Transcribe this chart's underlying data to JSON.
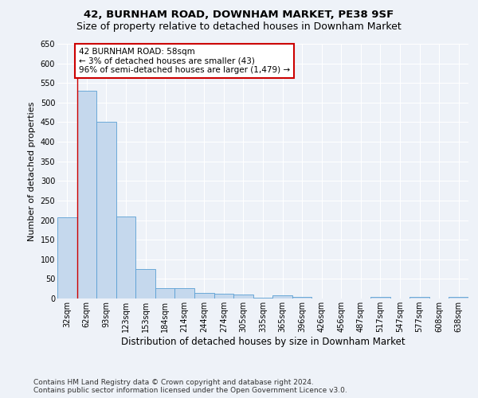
{
  "title": "42, BURNHAM ROAD, DOWNHAM MARKET, PE38 9SF",
  "subtitle": "Size of property relative to detached houses in Downham Market",
  "xlabel": "Distribution of detached houses by size in Downham Market",
  "ylabel": "Number of detached properties",
  "categories": [
    "32sqm",
    "62sqm",
    "93sqm",
    "123sqm",
    "153sqm",
    "184sqm",
    "214sqm",
    "244sqm",
    "274sqm",
    "305sqm",
    "335sqm",
    "365sqm",
    "396sqm",
    "426sqm",
    "456sqm",
    "487sqm",
    "517sqm",
    "547sqm",
    "577sqm",
    "608sqm",
    "638sqm"
  ],
  "values": [
    207,
    530,
    450,
    210,
    75,
    27,
    27,
    15,
    13,
    10,
    3,
    8,
    5,
    0,
    0,
    0,
    5,
    0,
    5,
    0,
    5
  ],
  "bar_color": "#c5d8ed",
  "bar_edge_color": "#5a9fd4",
  "annotation_text": "42 BURNHAM ROAD: 58sqm\n← 3% of detached houses are smaller (43)\n96% of semi-detached houses are larger (1,479) →",
  "annotation_box_color": "#ffffff",
  "annotation_box_edge_color": "#cc0000",
  "red_line_x": 0.5,
  "ylim": [
    0,
    650
  ],
  "yticks": [
    0,
    50,
    100,
    150,
    200,
    250,
    300,
    350,
    400,
    450,
    500,
    550,
    600,
    650
  ],
  "footer_line1": "Contains HM Land Registry data © Crown copyright and database right 2024.",
  "footer_line2": "Contains public sector information licensed under the Open Government Licence v3.0.",
  "bg_color": "#eef2f8",
  "grid_color": "#ffffff",
  "title_fontsize": 9.5,
  "subtitle_fontsize": 9,
  "ylabel_fontsize": 8,
  "xlabel_fontsize": 8.5,
  "tick_fontsize": 7,
  "annotation_fontsize": 7.5,
  "footer_fontsize": 6.5
}
